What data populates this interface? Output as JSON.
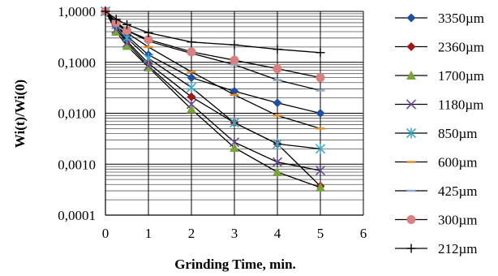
{
  "chart_data": {
    "type": "line",
    "title": "",
    "xlabel": "Grinding Time, min.",
    "ylabel": "Wi(t)/Wi(0)",
    "yscale": "log",
    "xlim": [
      0,
      6
    ],
    "ylim": [
      0.0001,
      1.0
    ],
    "x_ticks": [
      "0",
      "1",
      "2",
      "3",
      "4",
      "5",
      "6"
    ],
    "y_ticks": [
      "0,0001",
      "0,0010",
      "0,0100",
      "0,1000",
      "1,0000"
    ],
    "grid": true,
    "legend_position": "right",
    "series": [
      {
        "name": "3350µm",
        "color": "#1f4fa0",
        "marker": "diamond",
        "x": [
          0,
          0.25,
          0.5,
          1,
          2,
          3,
          4,
          5
        ],
        "y": [
          1.0,
          0.55,
          0.33,
          0.14,
          0.05,
          0.027,
          0.016,
          0.01
        ]
      },
      {
        "name": "2360µm",
        "color": "#a01818",
        "marker": "diamond",
        "x": [
          0,
          0.25,
          0.5,
          1,
          2,
          3,
          4,
          5
        ],
        "y": [
          1.0,
          0.5,
          0.26,
          0.095,
          0.021,
          0.0065,
          0.0025,
          0.00037
        ]
      },
      {
        "name": "1700µm",
        "color": "#7aa33a",
        "marker": "triangle",
        "x": [
          0,
          0.25,
          0.5,
          1,
          2,
          3,
          4,
          5
        ],
        "y": [
          1.0,
          0.4,
          0.21,
          0.08,
          0.012,
          0.0021,
          0.0007,
          0.00035
        ]
      },
      {
        "name": "1180µm",
        "color": "#6a4a9a",
        "marker": "x",
        "x": [
          0,
          0.25,
          0.5,
          1,
          2,
          3,
          4,
          5
        ],
        "y": [
          1.0,
          0.45,
          0.24,
          0.085,
          0.015,
          0.0027,
          0.0011,
          0.00075
        ]
      },
      {
        "name": "850µm",
        "color": "#3aaacc",
        "marker": "asterisk",
        "x": [
          0,
          0.25,
          0.5,
          1,
          2,
          3,
          4,
          5
        ],
        "y": [
          1.0,
          0.55,
          0.3,
          0.12,
          0.032,
          0.0065,
          0.0025,
          0.002
        ]
      },
      {
        "name": "600µm",
        "color": "#e08a2a",
        "marker": "dash",
        "x": [
          0,
          0.25,
          0.5,
          1,
          2,
          3,
          4,
          5
        ],
        "y": [
          1.0,
          0.6,
          0.38,
          0.2,
          0.065,
          0.023,
          0.009,
          0.005
        ]
      },
      {
        "name": "425µm",
        "color": "#8fa8d0",
        "marker": "dash",
        "x": [
          0,
          0.25,
          0.5,
          1,
          2,
          3,
          4,
          5
        ],
        "y": [
          1.0,
          0.62,
          0.42,
          0.26,
          0.15,
          0.09,
          0.045,
          0.028
        ]
      },
      {
        "name": "300µm",
        "color": "#d98080",
        "marker": "circle",
        "x": [
          0,
          0.25,
          0.5,
          1,
          2,
          3,
          4,
          5
        ],
        "y": [
          1.0,
          0.6,
          0.42,
          0.28,
          0.16,
          0.11,
          0.075,
          0.05
        ]
      },
      {
        "name": "212µm",
        "color": "#000000",
        "marker": "plus",
        "x": [
          0,
          0.25,
          0.5,
          1,
          2,
          3,
          4,
          5
        ],
        "y": [
          1.0,
          0.7,
          0.55,
          0.38,
          0.25,
          0.22,
          0.18,
          0.155
        ]
      }
    ]
  }
}
